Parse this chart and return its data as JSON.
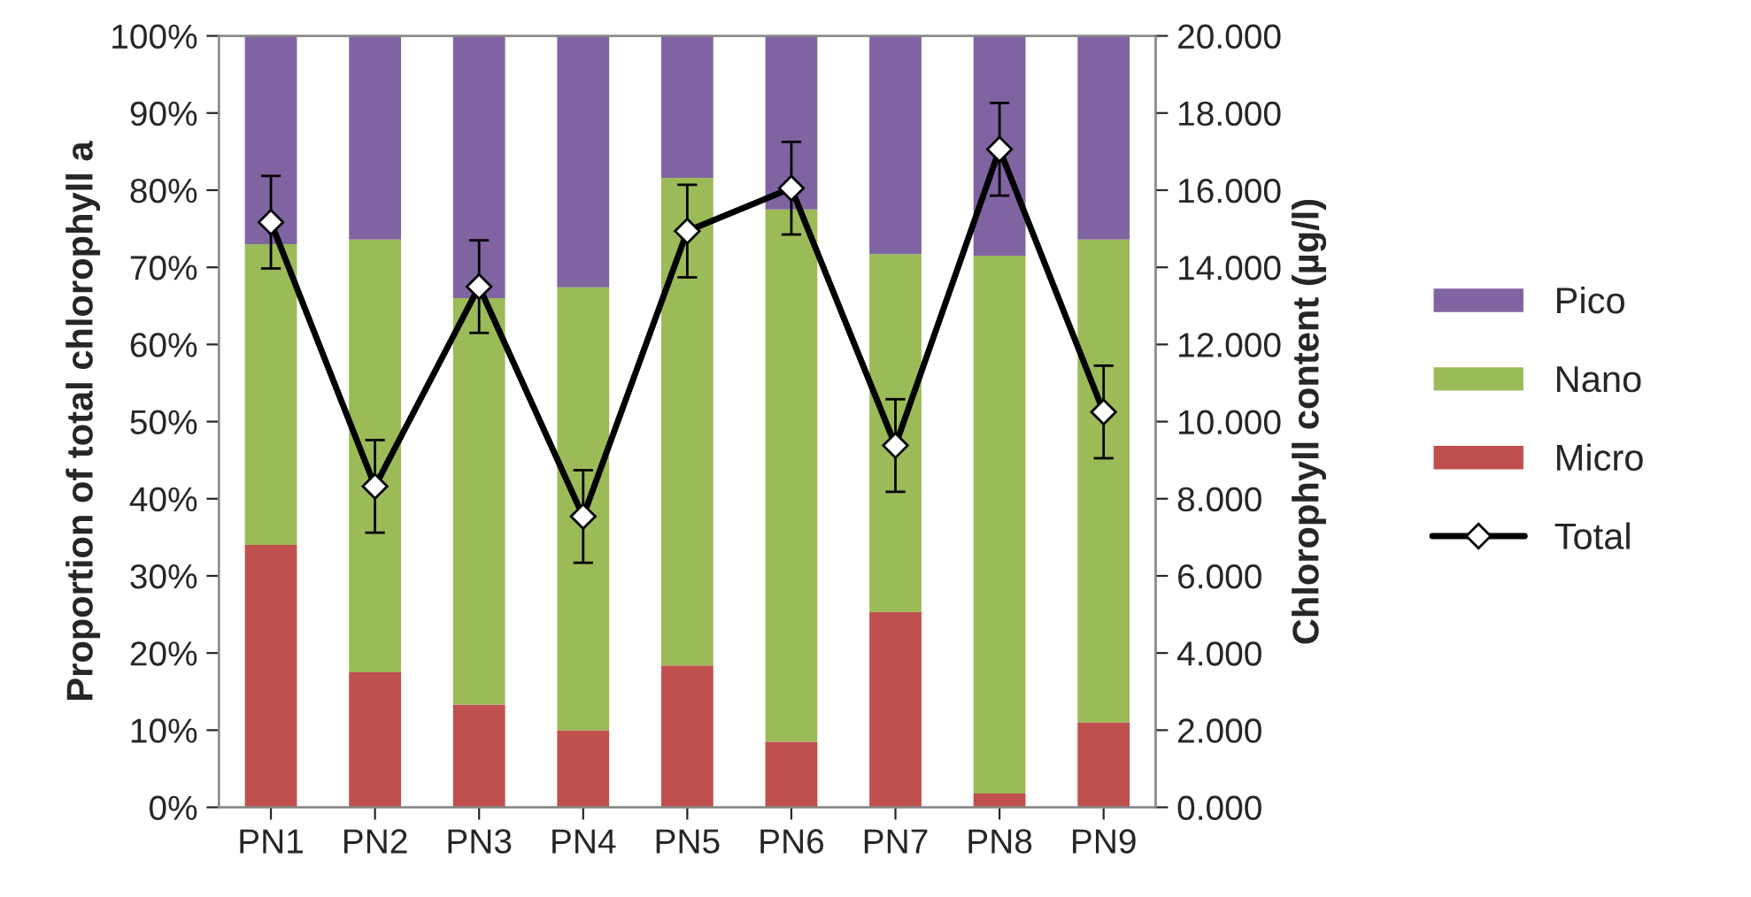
{
  "chart_data": {
    "type": "bar",
    "stacked": true,
    "categories": [
      "PN1",
      "PN2",
      "PN3",
      "PN4",
      "PN5",
      "PN6",
      "PN7",
      "PN8",
      "PN9"
    ],
    "ylabel": "Proportion of total chlorophyll a",
    "y2label": "Chlorophyll content (µg/l)",
    "ylim": [
      0,
      100
    ],
    "yticks": [
      {
        "value": 0,
        "label": "0%"
      },
      {
        "value": 10,
        "label": "10%"
      },
      {
        "value": 20,
        "label": "20%"
      },
      {
        "value": 30,
        "label": "30%"
      },
      {
        "value": 40,
        "label": "40%"
      },
      {
        "value": 50,
        "label": "50%"
      },
      {
        "value": 60,
        "label": "60%"
      },
      {
        "value": 70,
        "label": "70%"
      },
      {
        "value": 80,
        "label": "80%"
      },
      {
        "value": 90,
        "label": "90%"
      },
      {
        "value": 100,
        "label": "100%"
      }
    ],
    "y2lim": [
      0,
      20
    ],
    "y2ticks": [
      {
        "value": 0,
        "label": "0.000"
      },
      {
        "value": 2,
        "label": "2.000"
      },
      {
        "value": 4,
        "label": "4.000"
      },
      {
        "value": 6,
        "label": "6.000"
      },
      {
        "value": 8,
        "label": "8.000"
      },
      {
        "value": 10,
        "label": "10.000"
      },
      {
        "value": 12,
        "label": "12.000"
      },
      {
        "value": 14,
        "label": "14.000"
      },
      {
        "value": 16,
        "label": "16.000"
      },
      {
        "value": 18,
        "label": "18.000"
      },
      {
        "value": 20,
        "label": "20.000"
      }
    ],
    "series": [
      {
        "name": "Micro",
        "color": "#c0504d",
        "values": [
          34,
          17.5,
          13.3,
          10,
          18.4,
          8.5,
          25.3,
          1.8,
          11
        ]
      },
      {
        "name": "Nano",
        "color": "#9bbb59",
        "values": [
          39,
          56.1,
          52.7,
          57.4,
          63.2,
          69,
          46.4,
          69.7,
          62.6
        ]
      },
      {
        "name": "Pico",
        "color": "#8064a2",
        "values": [
          27,
          26.4,
          34,
          32.6,
          18.4,
          22.5,
          28.3,
          28.5,
          26.4
        ]
      },
      {
        "name": "Total",
        "type": "line",
        "axis": "y2",
        "color": "#000000",
        "marker": "diamond",
        "values": [
          15.17,
          8.32,
          13.5,
          7.54,
          14.94,
          16.05,
          9.38,
          17.06,
          10.25
        ],
        "errors": [
          1.2,
          1.2,
          1.2,
          1.2,
          1.2,
          1.2,
          1.2,
          1.2,
          1.2
        ]
      }
    ],
    "legend": "right",
    "grid": false
  }
}
